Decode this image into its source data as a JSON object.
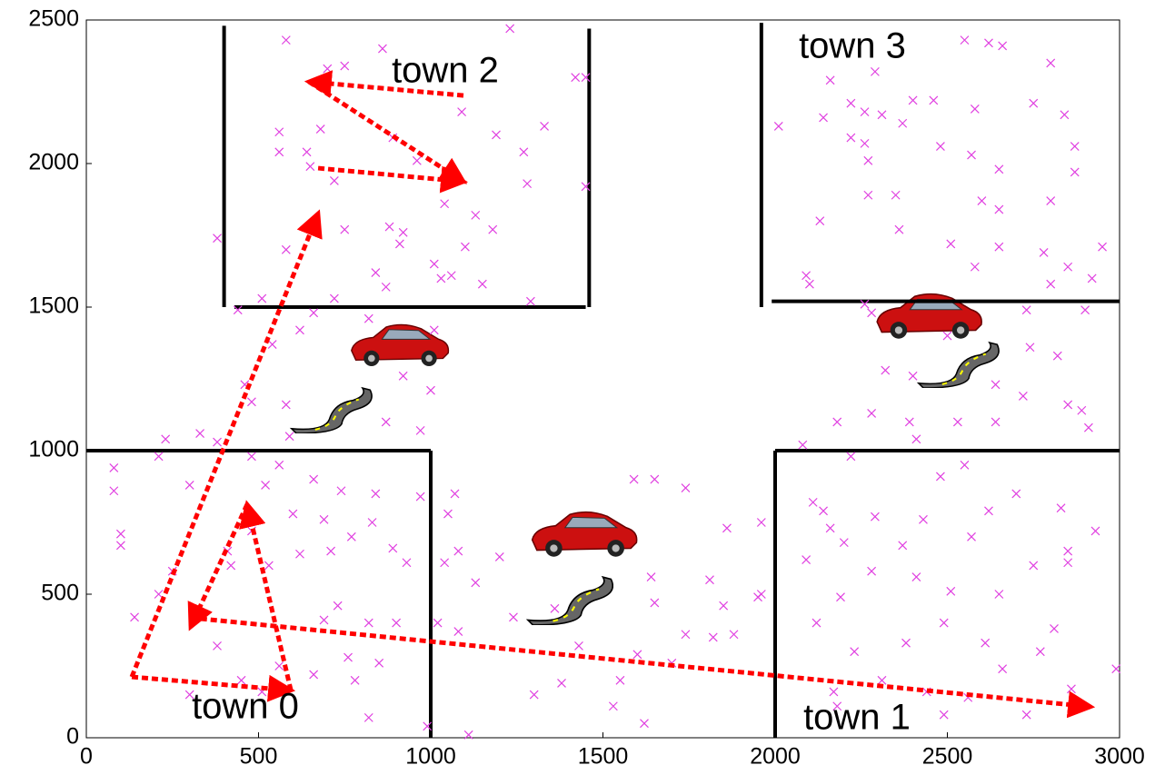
{
  "chart_data": {
    "type": "scatter",
    "xlim": [
      0,
      3000
    ],
    "ylim": [
      0,
      2500
    ],
    "xticks": [
      0,
      500,
      1000,
      1500,
      2000,
      2500,
      3000
    ],
    "yticks": [
      0,
      500,
      1000,
      1500,
      2000,
      2500
    ],
    "color": "#e040e0",
    "annotations": [
      "town 0",
      "town 1",
      "town 2",
      "town 3"
    ],
    "x": [
      1230,
      580,
      860,
      700,
      750,
      1450,
      1420,
      560,
      680,
      1090,
      1190,
      1330,
      890,
      560,
      640,
      1270,
      650,
      960,
      1450,
      1280,
      720,
      1040,
      1130,
      750,
      880,
      920,
      1180,
      910,
      1100,
      580,
      1010,
      840,
      1060,
      1030,
      1150,
      870,
      720,
      510,
      1290,
      380,
      440,
      660,
      820,
      620,
      540,
      1010,
      460,
      920,
      480,
      1000,
      580,
      870,
      970,
      590,
      100,
      100,
      80,
      80,
      210,
      230,
      330,
      380,
      480,
      560,
      660,
      740,
      840,
      970,
      300,
      520,
      600,
      690,
      770,
      830,
      410,
      480,
      620,
      710,
      890,
      930,
      140,
      250,
      420,
      530,
      730,
      820,
      900,
      210,
      380,
      560,
      660,
      760,
      850,
      300,
      450,
      510,
      780,
      820,
      990,
      690,
      1050,
      1070,
      1590,
      1650,
      1740,
      1200,
      1040,
      1080,
      1130,
      1240,
      1020,
      1080,
      1360,
      1640,
      1650,
      1860,
      1810,
      1850,
      1960,
      1960,
      1600,
      1430,
      1300,
      1380,
      1530,
      1620,
      1110,
      1820,
      1700,
      1740,
      1880,
      1950,
      1550,
      2010,
      2160,
      2220,
      2290,
      2620,
      2660,
      2800,
      2750,
      2550,
      2400,
      2460,
      2580,
      2840,
      2140,
      2260,
      2310,
      2370,
      2220,
      2260,
      2480,
      2650,
      2870,
      2870,
      2270,
      2570,
      2350,
      2270,
      2600,
      2650,
      2800,
      2130,
      2360,
      2510,
      2650,
      2780,
      2850,
      2920,
      2950,
      2090,
      2100,
      2580,
      2800,
      2260,
      2280,
      2730,
      2900,
      2500,
      2740,
      2820,
      2320,
      2400,
      2640,
      2720,
      2890,
      2280,
      2180,
      2390,
      2530,
      2640,
      2850,
      2910,
      2410,
      2080,
      2220,
      2550,
      2480,
      2700,
      2110,
      2140,
      2290,
      2430,
      2620,
      2830,
      2160,
      2200,
      2370,
      2570,
      2750,
      2850,
      2930,
      2090,
      2190,
      2280,
      2410,
      2510,
      2650,
      2850,
      2120,
      2230,
      2380,
      2490,
      2610,
      2770,
      2810,
      2170,
      2310,
      2440,
      2560,
      2660,
      2730,
      2860,
      2990,
      2490,
      2180
    ],
    "y": [
      2470,
      2430,
      2400,
      2330,
      2340,
      2300,
      2300,
      2110,
      2120,
      2180,
      2100,
      2130,
      2090,
      2040,
      2040,
      2040,
      1990,
      2010,
      1920,
      1930,
      1940,
      1860,
      1820,
      1770,
      1780,
      1760,
      1770,
      1720,
      1710,
      1700,
      1650,
      1620,
      1610,
      1600,
      1580,
      1570,
      1530,
      1530,
      1520,
      1740,
      1490,
      1480,
      1460,
      1420,
      1370,
      1420,
      1230,
      1260,
      1170,
      1210,
      1160,
      1100,
      1070,
      1050,
      710,
      670,
      940,
      860,
      980,
      1040,
      1060,
      1030,
      980,
      950,
      900,
      860,
      850,
      840,
      880,
      880,
      780,
      760,
      700,
      750,
      650,
      720,
      640,
      650,
      660,
      610,
      420,
      580,
      600,
      600,
      460,
      400,
      400,
      500,
      320,
      250,
      220,
      280,
      260,
      150,
      200,
      160,
      200,
      70,
      40,
      410,
      780,
      850,
      900,
      900,
      870,
      630,
      610,
      650,
      540,
      420,
      400,
      370,
      450,
      560,
      470,
      730,
      550,
      460,
      750,
      500,
      290,
      320,
      150,
      190,
      110,
      50,
      10,
      350,
      260,
      360,
      360,
      490,
      200,
      2130,
      2290,
      2210,
      2320,
      2420,
      2410,
      2350,
      2210,
      2430,
      2220,
      2220,
      2190,
      2170,
      2160,
      2180,
      2170,
      2140,
      2090,
      2070,
      2060,
      1980,
      2060,
      1970,
      2010,
      2030,
      1890,
      1890,
      1870,
      1840,
      1870,
      1800,
      1770,
      1720,
      1710,
      1690,
      1640,
      1600,
      1710,
      1610,
      1580,
      1640,
      1580,
      1510,
      1480,
      1490,
      1490,
      1400,
      1360,
      1330,
      1280,
      1260,
      1230,
      1190,
      1140,
      1130,
      1100,
      1100,
      1100,
      1100,
      1160,
      1080,
      1040,
      1020,
      980,
      950,
      910,
      850,
      820,
      790,
      770,
      760,
      790,
      800,
      730,
      680,
      670,
      700,
      600,
      650,
      720,
      620,
      490,
      580,
      560,
      510,
      500,
      610,
      400,
      300,
      330,
      400,
      330,
      300,
      380,
      160,
      200,
      160,
      140,
      240,
      80,
      170,
      240,
      80,
      110
    ],
    "walls": [
      {
        "x": [
          400,
          400
        ],
        "y": [
          1500,
          2480
        ]
      },
      {
        "x": [
          430,
          1450
        ],
        "y": [
          1500,
          1500
        ]
      },
      {
        "x": [
          1460,
          1460
        ],
        "y": [
          1500,
          2470
        ]
      },
      {
        "x": [
          1960,
          1960
        ],
        "y": [
          1500,
          2490
        ]
      },
      {
        "x": [
          1990,
          3000
        ],
        "y": [
          1520,
          1520
        ]
      },
      {
        "x": [
          0,
          1000
        ],
        "y": [
          1000,
          1000
        ]
      },
      {
        "x": [
          1000,
          1000
        ],
        "y": [
          0,
          1000
        ]
      },
      {
        "x": [
          2000,
          2000
        ],
        "y": [
          0,
          1000
        ]
      },
      {
        "x": [
          2000,
          3000
        ],
        "y": [
          1000,
          1000
        ]
      }
    ],
    "route_color": "#ff0000",
    "route": [
      {
        "x": [
          132,
          594
        ],
        "y": [
          212,
          165
        ]
      },
      {
        "x": [
          594,
          467
        ],
        "y": [
          165,
          813
        ]
      },
      {
        "x": [
          467,
          303
        ],
        "y": [
          813,
          386
        ]
      },
      {
        "x": [
          303,
          2916
        ],
        "y": [
          418,
          108
        ]
      },
      {
        "x": [
          132,
          673
        ],
        "y": [
          212,
          1826
        ]
      },
      {
        "x": [
          673,
          1095
        ],
        "y": [
          1984,
          1937
        ]
      },
      {
        "x": [
          1095,
          646
        ],
        "y": [
          2237,
          2285
        ]
      },
      {
        "x": [
          646,
          1095
        ],
        "y": [
          2285,
          1937
        ]
      }
    ]
  }
}
